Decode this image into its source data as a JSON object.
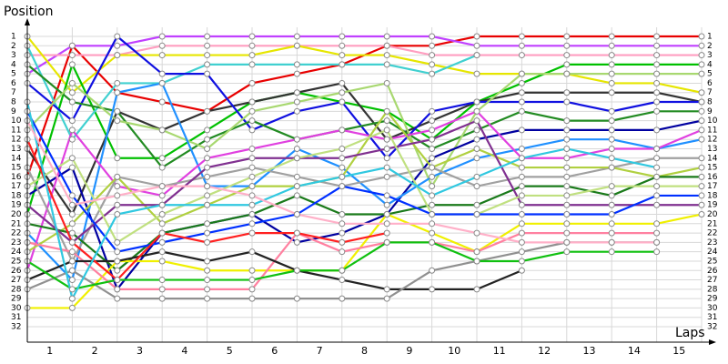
{
  "chart_data": {
    "type": "line",
    "y_label": "Position",
    "x_label": "Laps",
    "x": [
      0,
      1,
      2,
      3,
      4,
      5,
      6,
      7,
      8,
      9,
      10,
      11,
      12,
      13,
      14,
      15
    ],
    "categories": [
      "1",
      "2",
      "3",
      "4",
      "5",
      "6",
      "7",
      "8",
      "9",
      "10",
      "11",
      "12",
      "13",
      "14",
      "15"
    ],
    "xlim": [
      0,
      15
    ],
    "ylim": [
      1,
      32
    ],
    "y_inverted": true,
    "grid": true,
    "yticks": [
      1,
      2,
      3,
      4,
      5,
      6,
      7,
      8,
      9,
      10,
      11,
      12,
      13,
      14,
      15,
      16,
      17,
      18,
      19,
      20,
      21,
      22,
      23,
      24,
      25,
      26,
      27,
      28,
      29,
      30,
      31,
      32
    ],
    "series": [
      {
        "color": "#e80000",
        "values": [
          16,
          2,
          7,
          8,
          9,
          6,
          5,
          4,
          2,
          2,
          1,
          1,
          1,
          1,
          1,
          1
        ]
      },
      {
        "color": "#c040ff",
        "values": [
          5,
          2,
          2,
          1,
          1,
          1,
          1,
          1,
          1,
          1,
          2,
          2,
          2,
          2,
          2,
          2
        ]
      },
      {
        "color": "#ff9ec0",
        "values": [
          3,
          3,
          3,
          2,
          2,
          2,
          2,
          2,
          2,
          3,
          3,
          3,
          3,
          3,
          3,
          3
        ]
      },
      {
        "color": "#e6e600",
        "values": [
          1,
          7,
          3,
          3,
          3,
          3,
          2,
          3,
          3,
          4,
          5,
          5,
          5,
          6,
          6,
          7
        ]
      },
      {
        "color": "#00c000",
        "values": [
          20,
          4,
          14,
          14,
          11,
          8,
          7,
          8,
          9,
          12,
          8,
          6,
          4,
          4,
          4,
          4
        ]
      },
      {
        "color": "#40d0d0",
        "values": [
          2,
          12,
          6,
          6,
          4,
          4,
          4,
          4,
          4,
          5,
          3,
          null,
          null,
          null,
          null,
          null
        ]
      },
      {
        "color": "#333333",
        "values": [
          13,
          20,
          9,
          11,
          9,
          8,
          7,
          6,
          12,
          10,
          8,
          7,
          7,
          7,
          7,
          8
        ]
      },
      {
        "color": "#1010e0",
        "values": [
          6,
          10,
          1,
          5,
          5,
          11,
          9,
          8,
          14,
          9,
          8,
          8,
          8,
          9,
          8,
          8
        ]
      },
      {
        "color": "#228b22",
        "values": [
          4,
          8,
          9,
          15,
          12,
          10,
          12,
          11,
          10,
          13,
          11,
          9,
          10,
          10,
          9,
          9
        ]
      },
      {
        "color": "#a8d870",
        "values": [
          11,
          6,
          10,
          11,
          13,
          9,
          8,
          7,
          6,
          17,
          9,
          5,
          5,
          5,
          5,
          5
        ]
      },
      {
        "color": "#0000a0",
        "values": [
          18,
          15,
          28,
          22,
          21,
          20,
          23,
          22,
          20,
          14,
          12,
          11,
          11,
          11,
          11,
          10
        ]
      },
      {
        "color": "#2090ff",
        "values": [
          22,
          27,
          7,
          6,
          17,
          17,
          13,
          15,
          19,
          16,
          14,
          13,
          12,
          12,
          13,
          12
        ]
      },
      {
        "color": "#e040e0",
        "values": [
          26,
          11,
          17,
          18,
          14,
          13,
          12,
          11,
          12,
          11,
          9,
          14,
          14,
          13,
          13,
          11
        ]
      },
      {
        "color": "#a0a0a0",
        "values": [
          15,
          25,
          16,
          17,
          16,
          15,
          16,
          17,
          16,
          15,
          17,
          16,
          16,
          15,
          14,
          14
        ]
      },
      {
        "color": "#b0d040",
        "values": [
          24,
          21,
          16,
          21,
          19,
          17,
          17,
          16,
          9,
          15,
          13,
          15,
          15,
          15,
          16,
          15
        ]
      },
      {
        "color": "#1a7a1a",
        "values": [
          21,
          22,
          26,
          22,
          21,
          20,
          18,
          20,
          20,
          19,
          19,
          17,
          17,
          18,
          16,
          16
        ]
      },
      {
        "color": "#803090",
        "values": [
          19,
          23,
          19,
          19,
          15,
          14,
          14,
          14,
          13,
          12,
          10,
          19,
          19,
          19,
          19,
          19
        ]
      },
      {
        "color": "#f0f000",
        "values": [
          30,
          30,
          25,
          25,
          26,
          26,
          26,
          26,
          20,
          22,
          24,
          21,
          21,
          21,
          21,
          20
        ]
      },
      {
        "color": "#ff80a0",
        "values": [
          23,
          24,
          28,
          28,
          28,
          28,
          22,
          24,
          23,
          23,
          24,
          22,
          22,
          22,
          22,
          null
        ]
      },
      {
        "color": "#222222",
        "values": [
          27,
          25,
          25,
          24,
          25,
          24,
          26,
          27,
          28,
          28,
          28,
          26,
          null,
          null,
          null,
          null
        ]
      },
      {
        "color": "#909090",
        "values": [
          28,
          26,
          29,
          29,
          29,
          29,
          29,
          29,
          29,
          26,
          25,
          24,
          23,
          23,
          23,
          null
        ]
      },
      {
        "color": "#10c010",
        "values": [
          25,
          28,
          27,
          27,
          27,
          27,
          26,
          26,
          23,
          23,
          25,
          25,
          24,
          24,
          24,
          null
        ]
      },
      {
        "color": "#c0e080",
        "values": [
          17,
          14,
          23,
          20,
          18,
          16,
          14,
          13,
          11,
          20,
          20,
          18,
          18,
          17,
          17,
          17
        ]
      },
      {
        "color": "#0030ff",
        "values": [
          9,
          18,
          24,
          23,
          22,
          21,
          20,
          17,
          18,
          20,
          20,
          20,
          20,
          20,
          18,
          18
        ]
      },
      {
        "color": "#ff2020",
        "values": [
          12,
          23,
          27,
          22,
          23,
          22,
          22,
          23,
          22,
          null,
          null,
          null,
          null,
          null,
          null,
          null
        ]
      },
      {
        "color": "#30c8e0",
        "values": [
          8,
          29,
          20,
          19,
          19,
          19,
          17,
          16,
          15,
          18,
          16,
          14,
          13,
          14,
          15,
          null
        ]
      },
      {
        "color": "#ffb0c8",
        "values": [
          10,
          19,
          18,
          17,
          17,
          18,
          20,
          21,
          21,
          21,
          22,
          23,
          23,
          23,
          23,
          null
        ]
      }
    ]
  }
}
